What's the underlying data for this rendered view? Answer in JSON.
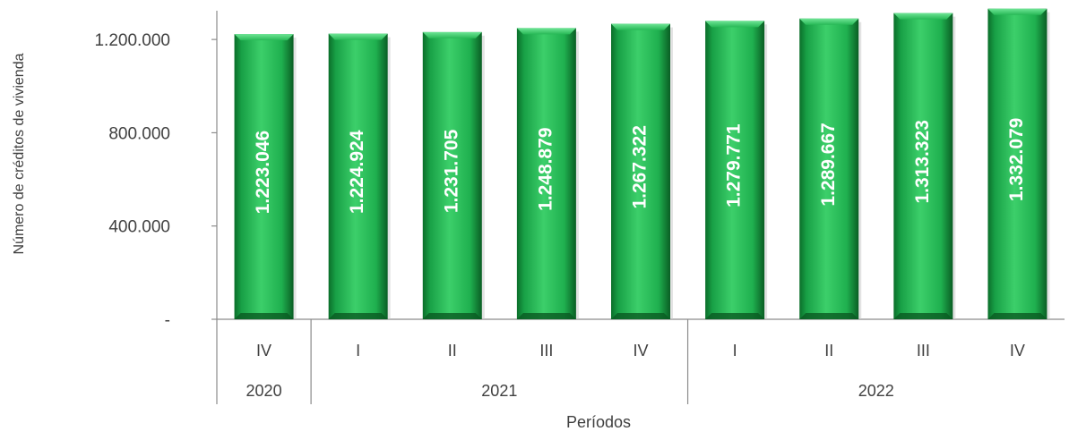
{
  "chart_data": {
    "type": "bar",
    "ylabel": "Número de créditos de vivienda",
    "xlabel": "Períodos",
    "ylim": [
      0,
      1400000
    ],
    "yticks": [
      {
        "value": 0,
        "label": "-"
      },
      {
        "value": 400000,
        "label": "400.000"
      },
      {
        "value": 800000,
        "label": "800.000"
      },
      {
        "value": 1200000,
        "label": "1.200.000"
      }
    ],
    "categories": [
      "IV",
      "I",
      "II",
      "III",
      "IV",
      "I",
      "II",
      "III",
      "IV"
    ],
    "groups": [
      {
        "label": "2020",
        "count": 1
      },
      {
        "label": "2021",
        "count": 4
      },
      {
        "label": "2022",
        "count": 4
      }
    ],
    "values": [
      1223046,
      1224924,
      1231705,
      1248879,
      1267322,
      1279771,
      1289667,
      1313323,
      1332079
    ],
    "value_labels": [
      "1.223.046",
      "1.224.924",
      "1.231.705",
      "1.248.879",
      "1.267.322",
      "1.279.771",
      "1.289.667",
      "1.313.323",
      "1.332.079"
    ],
    "grid": false,
    "legend": "none",
    "colors": {
      "bar": "#1fb04f",
      "bar_dark": "#0b6e2a",
      "bar_light": "#4fd97c",
      "axis": "#8c8c8c",
      "text": "#404040"
    }
  }
}
